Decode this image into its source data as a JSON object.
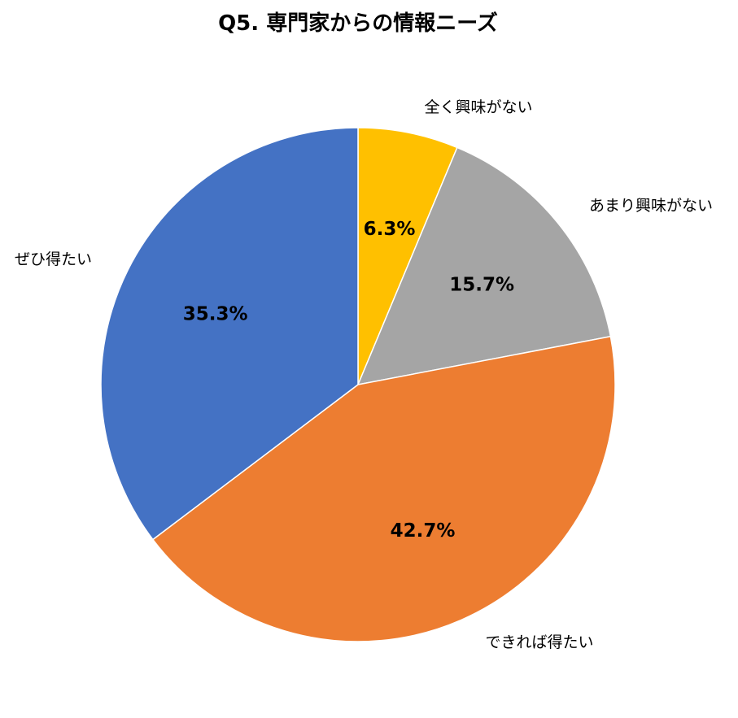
{
  "chart_data": {
    "type": "pie",
    "title": "Q5. 専門家からの情報ニーズ",
    "start": "top",
    "direction": "clockwise",
    "legend": "none",
    "slices": [
      {
        "category": "全く興味がない",
        "value": 6.3,
        "value_label": "6.3%",
        "color": "#FFC000"
      },
      {
        "category": "あまり興味がない",
        "value": 15.7,
        "value_label": "15.7%",
        "color": "#A5A5A5"
      },
      {
        "category": "できれば得たい",
        "value": 42.7,
        "value_label": "42.7%",
        "color": "#ED7D31"
      },
      {
        "category": "ぜひ得たい",
        "value": 35.3,
        "value_label": "35.3%",
        "color": "#4472C4"
      }
    ]
  }
}
